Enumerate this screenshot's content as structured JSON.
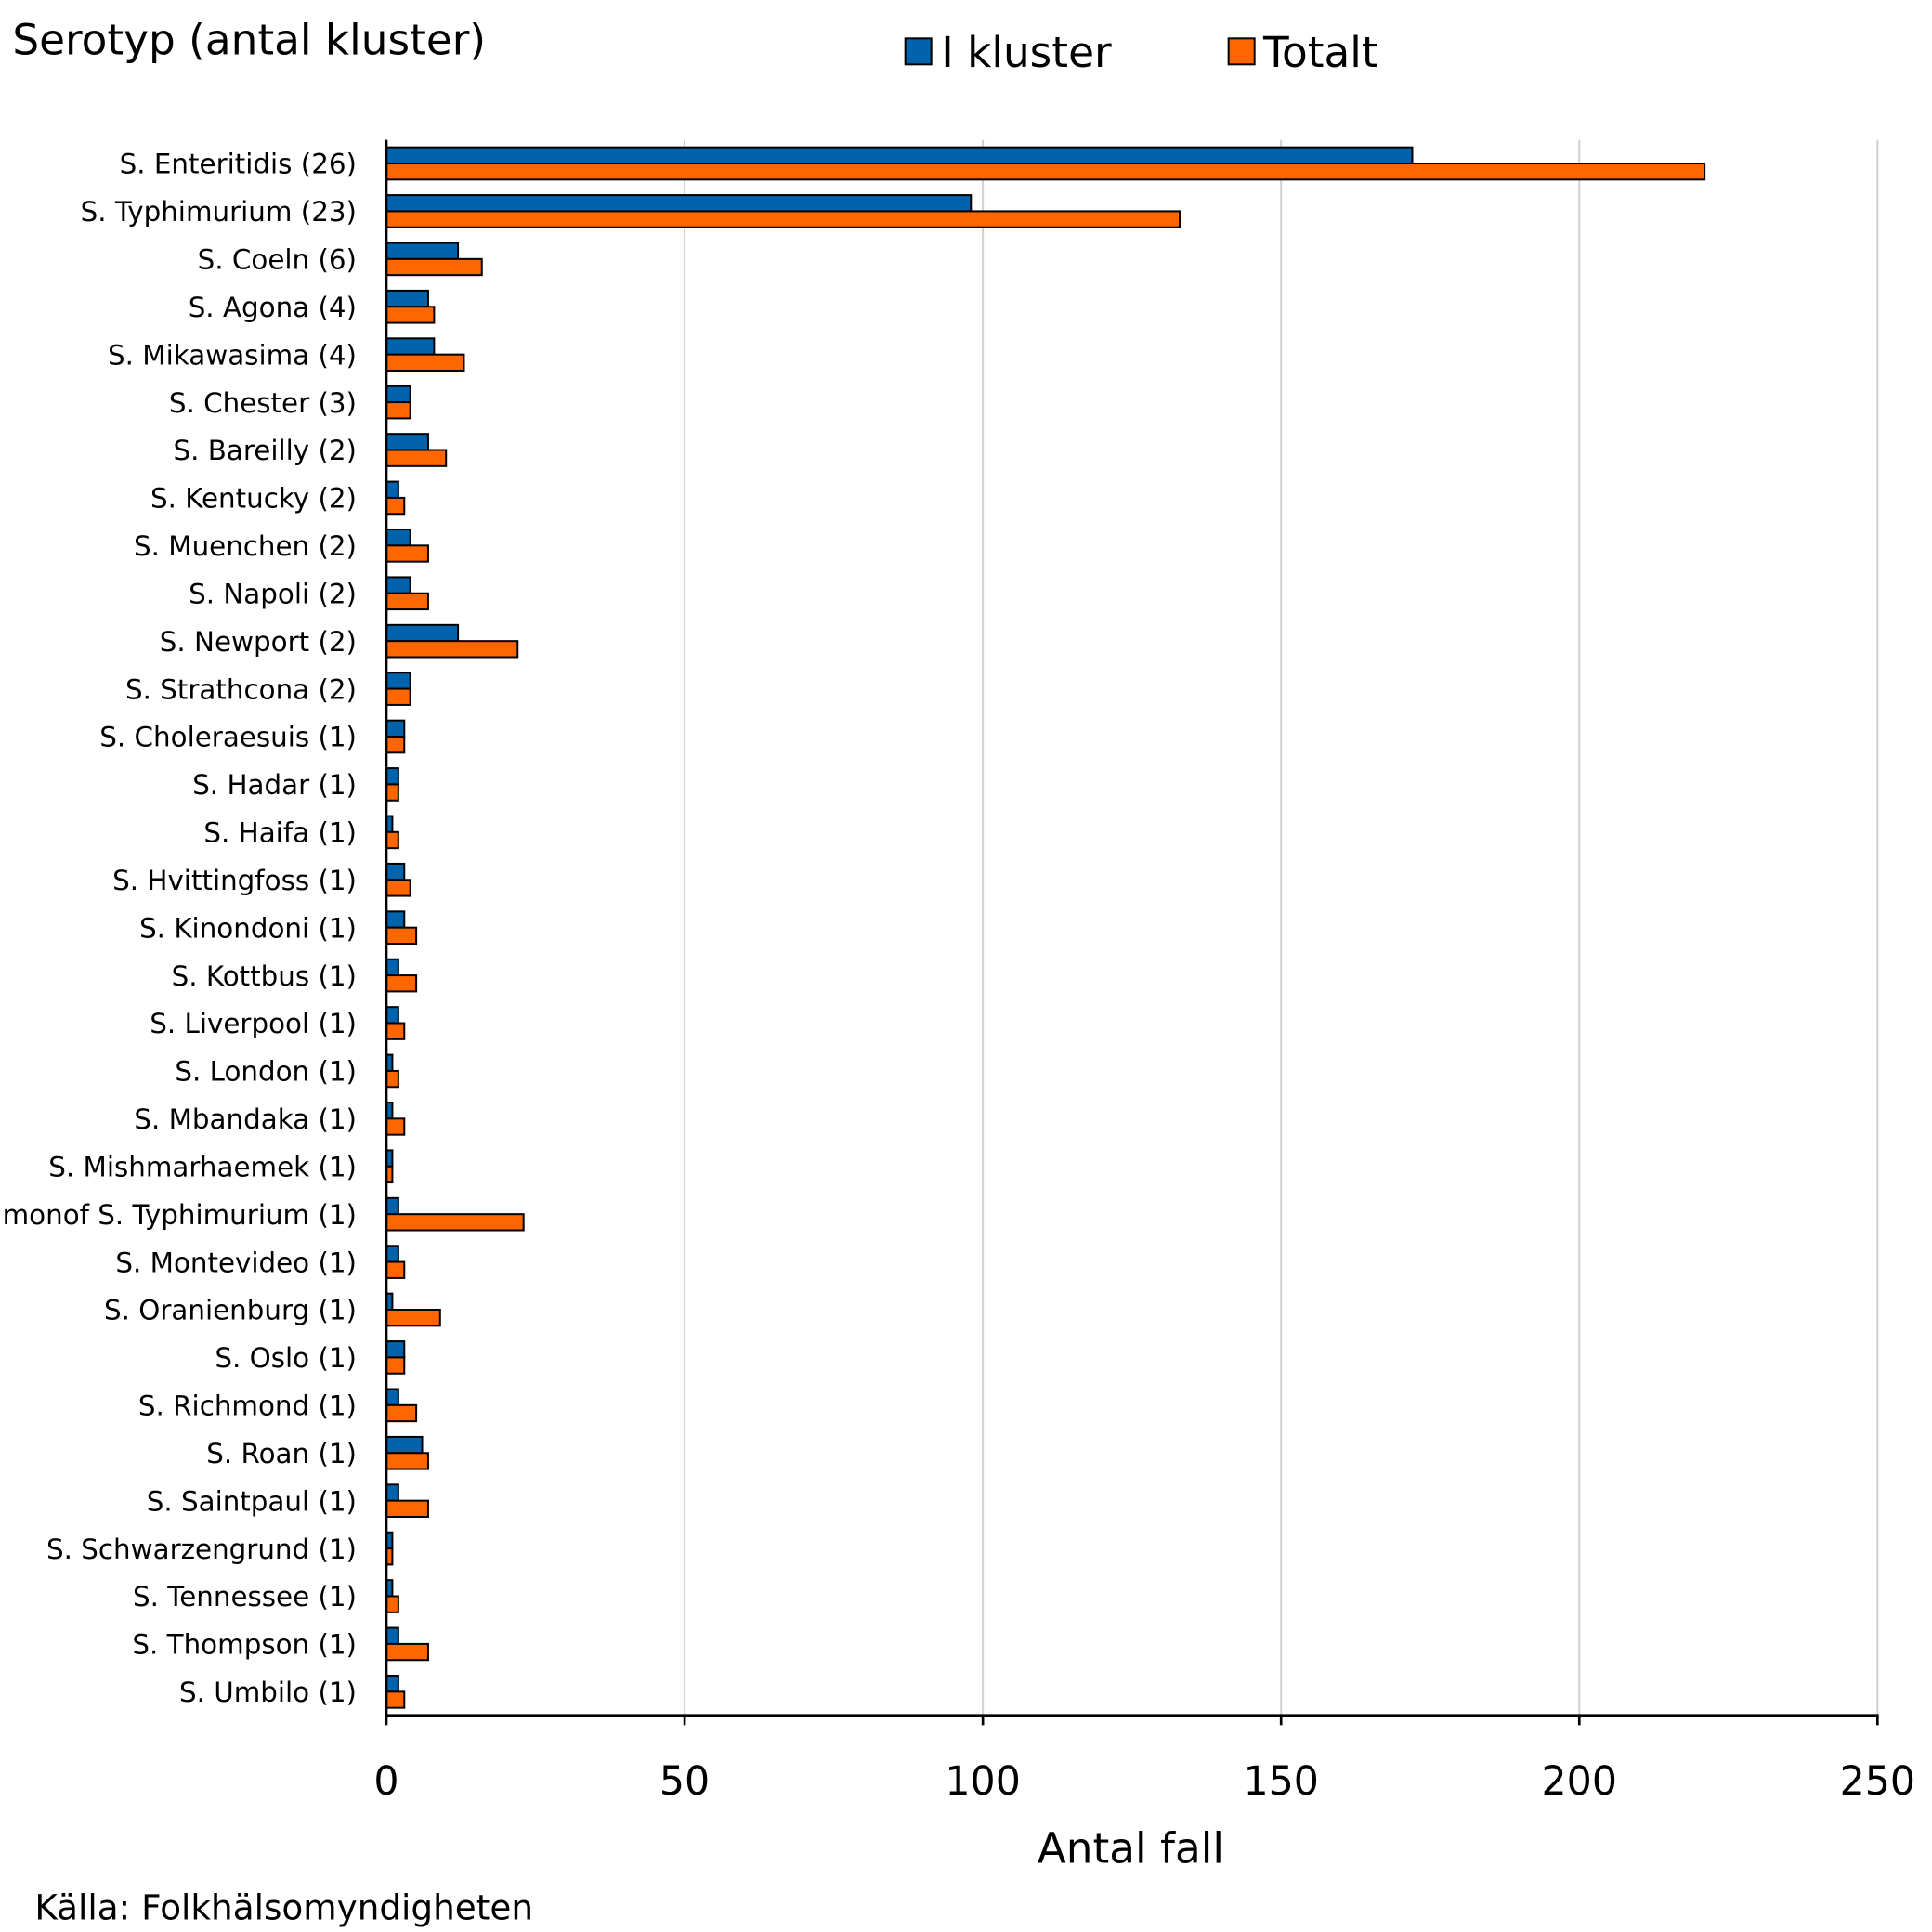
{
  "chart_data": {
    "type": "bar",
    "orientation": "horizontal",
    "title": "Serotyp (antal kluster)",
    "xlabel": "Antal fall",
    "ylabel": "",
    "xlim": [
      0,
      250
    ],
    "xticks": [
      0,
      50,
      100,
      150,
      200,
      250
    ],
    "grid": "vertical",
    "legend_position": "top",
    "categories": [
      "S. Enteritidis (26)",
      "S. Typhimurium (23)",
      "S. Coeln (6)",
      "S. Agona (4)",
      "S. Mikawasima (4)",
      "S. Chester (3)",
      "S. Bareilly (2)",
      "S. Kentucky (2)",
      "S. Muenchen (2)",
      "S. Napoli (2)",
      "S. Newport (2)",
      "S. Strathcona (2)",
      "S. Choleraesuis (1)",
      "S. Hadar (1)",
      "S. Haifa (1)",
      "S. Hvittingfoss (1)",
      "S. Kinondoni (1)",
      "S. Kottbus (1)",
      "S. Liverpool (1)",
      "S. London (1)",
      "S. Mbandaka (1)",
      "S. Mishmarhaemek (1)",
      "monof S. Typhimurium (1)",
      "S. Montevideo (1)",
      "S. Oranienburg (1)",
      "S. Oslo (1)",
      "S. Richmond (1)",
      "S. Roan (1)",
      "S. Saintpaul (1)",
      "S. Schwarzengrund (1)",
      "S. Tennessee (1)",
      "S. Thompson (1)",
      "S. Umbilo (1)"
    ],
    "series": [
      {
        "name": "I kluster",
        "color": "#0063AC",
        "values": [
          172,
          98,
          12,
          7,
          8,
          4,
          7,
          2,
          4,
          4,
          12,
          4,
          3,
          2,
          1,
          3,
          3,
          2,
          2,
          1,
          1,
          1,
          2,
          2,
          1,
          3,
          2,
          6,
          2,
          1,
          1,
          2,
          2
        ]
      },
      {
        "name": "Totalt",
        "color": "#FF6600",
        "values": [
          221,
          133,
          16,
          8,
          13,
          4,
          10,
          3,
          7,
          7,
          22,
          4,
          3,
          2,
          2,
          4,
          5,
          5,
          3,
          2,
          3,
          1,
          23,
          3,
          9,
          3,
          5,
          7,
          7,
          1,
          2,
          7,
          3
        ]
      }
    ],
    "source": "Källa: Folkhälsomyndigheten"
  }
}
